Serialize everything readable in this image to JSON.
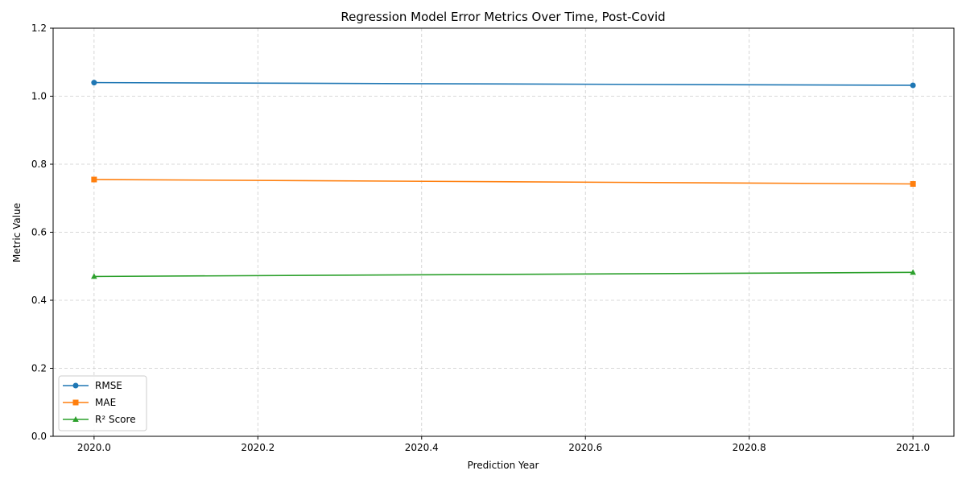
{
  "chart_data": {
    "type": "line",
    "title": "Regression Model Error Metrics Over Time, Post-Covid",
    "xlabel": "Prediction Year",
    "ylabel": "Metric Value",
    "x": [
      2020.0,
      2021.0
    ],
    "xlim": [
      2019.95,
      2021.05
    ],
    "ylim": [
      0.0,
      1.2
    ],
    "xticks": [
      "2020.0",
      "2020.2",
      "2020.4",
      "2020.6",
      "2020.8",
      "2021.0"
    ],
    "xtick_values": [
      2020.0,
      2020.2,
      2020.4,
      2020.6,
      2020.8,
      2021.0
    ],
    "yticks": [
      "0.0",
      "0.2",
      "0.4",
      "0.6",
      "0.8",
      "1.0",
      "1.2"
    ],
    "ytick_values": [
      0.0,
      0.2,
      0.4,
      0.6,
      0.8,
      1.0,
      1.2
    ],
    "grid": true,
    "legend_position": "lower-left",
    "series": [
      {
        "name": "RMSE",
        "values": [
          1.04,
          1.032
        ],
        "color": "#1f77b4",
        "marker": "circle"
      },
      {
        "name": "MAE",
        "values": [
          0.755,
          0.742
        ],
        "color": "#ff7f0e",
        "marker": "square"
      },
      {
        "name": "R² Score",
        "values": [
          0.47,
          0.482
        ],
        "color": "#2ca02c",
        "marker": "triangle"
      }
    ]
  }
}
